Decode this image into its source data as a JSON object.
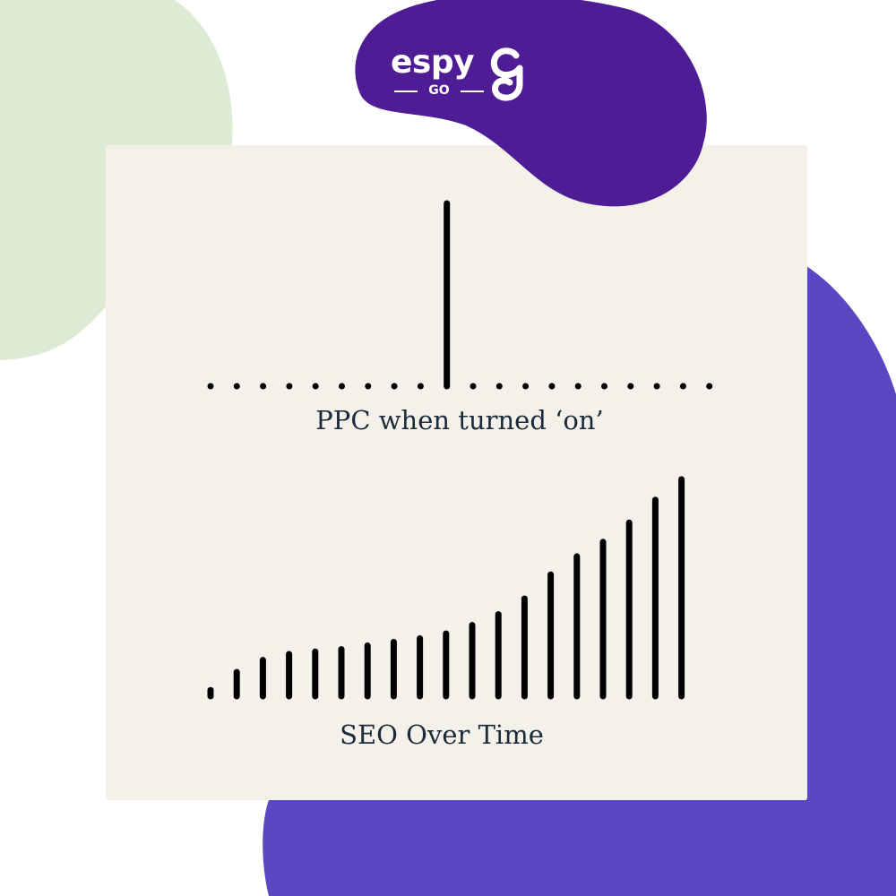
{
  "brand": {
    "word": "espy",
    "sub": "GO",
    "mark_icon": "espy-g-icon",
    "colors": {
      "primary": "#4e1c94",
      "secondary": "#5a47c2",
      "mint": "#deebd4",
      "card": "#f4f0ea",
      "bar": "#000000",
      "text": "#1c2b3a"
    }
  },
  "chart_data": [
    {
      "type": "bar",
      "title": "PPC when turned ‘on’",
      "values": [
        0,
        0,
        0,
        0,
        0,
        0,
        0,
        0,
        0,
        1,
        0,
        0,
        0,
        0,
        0,
        0,
        0,
        0,
        0,
        0
      ]
    },
    {
      "type": "bar",
      "title": "SEO Over Time",
      "values": [
        0.5,
        2,
        3,
        3.5,
        3.7,
        3.9,
        4.2,
        4.5,
        4.8,
        5.2,
        5.9,
        6.8,
        8.1,
        10.1,
        11.6,
        12.8,
        14.4,
        16.3,
        18.0
      ]
    }
  ]
}
